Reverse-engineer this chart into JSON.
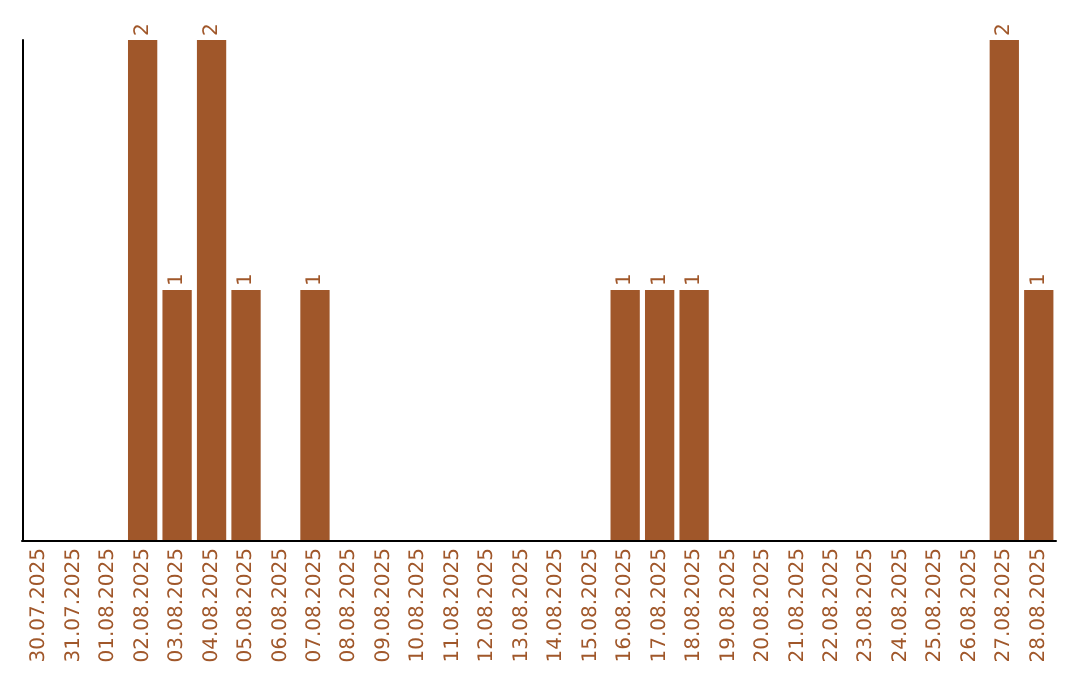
{
  "chart_data": {
    "type": "bar",
    "categories": [
      "30.07.2025",
      "31.07.2025",
      "01.08.2025",
      "02.08.2025",
      "03.08.2025",
      "04.08.2025",
      "05.08.2025",
      "06.08.2025",
      "07.08.2025",
      "08.08.2025",
      "09.08.2025",
      "10.08.2025",
      "11.08.2025",
      "12.08.2025",
      "13.08.2025",
      "14.08.2025",
      "15.08.2025",
      "16.08.2025",
      "17.08.2025",
      "18.08.2025",
      "19.08.2025",
      "20.08.2025",
      "21.08.2025",
      "22.08.2025",
      "23.08.2025",
      "24.08.2025",
      "25.08.2025",
      "26.08.2025",
      "27.08.2025",
      "28.08.2025"
    ],
    "values": [
      0,
      0,
      0,
      2,
      1,
      2,
      1,
      0,
      1,
      0,
      0,
      0,
      0,
      0,
      0,
      0,
      0,
      1,
      1,
      1,
      0,
      0,
      0,
      0,
      0,
      0,
      0,
      0,
      2,
      1
    ],
    "value_labels": [
      null,
      null,
      null,
      "2",
      "1",
      "2",
      "1",
      null,
      "1",
      null,
      null,
      null,
      null,
      null,
      null,
      null,
      null,
      "1",
      "1",
      "1",
      null,
      null,
      null,
      null,
      null,
      null,
      null,
      null,
      "2",
      "1"
    ],
    "color": "#a0572a",
    "ylim": [
      0,
      2
    ],
    "tick_labels": "x"
  }
}
